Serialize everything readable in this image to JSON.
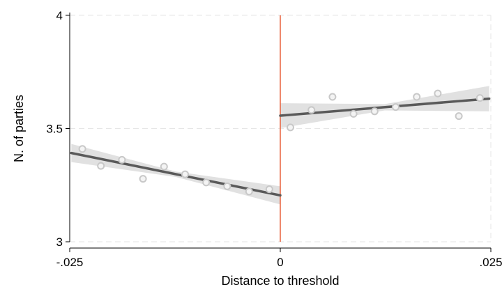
{
  "chart_data": {
    "type": "scatter",
    "title": "",
    "xlabel": "Distance to threshold",
    "ylabel": "N. of parties",
    "xlim": [
      -0.025,
      0.025
    ],
    "ylim": [
      3,
      4
    ],
    "x_ticks": [
      {
        "value": -0.025,
        "label": "-.025"
      },
      {
        "value": 0,
        "label": "0"
      },
      {
        "value": 0.025,
        "label": ".025"
      }
    ],
    "y_ticks": [
      {
        "value": 3,
        "label": "3"
      },
      {
        "value": 3.5,
        "label": "3.5"
      },
      {
        "value": 4,
        "label": "4"
      }
    ],
    "grid": true,
    "threshold": {
      "x": 0,
      "color": "#e8603c"
    },
    "colors": {
      "points": "#c8c8c8",
      "fit": "#5a5a5a",
      "ci": "#dcdcdc",
      "grid": "#e6e6e6"
    },
    "series": [
      {
        "side": "left",
        "points": [
          {
            "x": -0.0235,
            "y": 3.41
          },
          {
            "x": -0.0213,
            "y": 3.335
          },
          {
            "x": -0.0188,
            "y": 3.362
          },
          {
            "x": -0.0163,
            "y": 3.278
          },
          {
            "x": -0.0138,
            "y": 3.332
          },
          {
            "x": -0.0113,
            "y": 3.298
          },
          {
            "x": -0.0088,
            "y": 3.262
          },
          {
            "x": -0.0063,
            "y": 3.245
          },
          {
            "x": -0.0037,
            "y": 3.222
          },
          {
            "x": -0.0013,
            "y": 3.232
          }
        ],
        "fit": [
          {
            "x": -0.0248,
            "y": 3.392
          },
          {
            "x": 0,
            "y": 3.205
          }
        ],
        "ci_upper": [
          {
            "x": -0.0248,
            "y": 3.432
          },
          {
            "x": -0.0124,
            "y": 3.31
          },
          {
            "x": 0,
            "y": 3.245
          }
        ],
        "ci_lower": [
          {
            "x": -0.0248,
            "y": 3.352
          },
          {
            "x": -0.0124,
            "y": 3.286
          },
          {
            "x": 0,
            "y": 3.165
          }
        ]
      },
      {
        "side": "right",
        "points": [
          {
            "x": 0.0012,
            "y": 3.505
          },
          {
            "x": 0.0037,
            "y": 3.582
          },
          {
            "x": 0.0062,
            "y": 3.64
          },
          {
            "x": 0.0087,
            "y": 3.565
          },
          {
            "x": 0.0112,
            "y": 3.576
          },
          {
            "x": 0.0137,
            "y": 3.595
          },
          {
            "x": 0.0162,
            "y": 3.64
          },
          {
            "x": 0.0187,
            "y": 3.655
          },
          {
            "x": 0.0212,
            "y": 3.555
          },
          {
            "x": 0.0237,
            "y": 3.635
          }
        ],
        "fit": [
          {
            "x": 0,
            "y": 3.557
          },
          {
            "x": 0.0248,
            "y": 3.632
          }
        ],
        "ci_upper": [
          {
            "x": 0,
            "y": 3.612
          },
          {
            "x": 0.0124,
            "y": 3.608
          },
          {
            "x": 0.0248,
            "y": 3.688
          }
        ],
        "ci_lower": [
          {
            "x": 0,
            "y": 3.502
          },
          {
            "x": 0.0124,
            "y": 3.58
          },
          {
            "x": 0.0248,
            "y": 3.576
          }
        ]
      }
    ]
  }
}
